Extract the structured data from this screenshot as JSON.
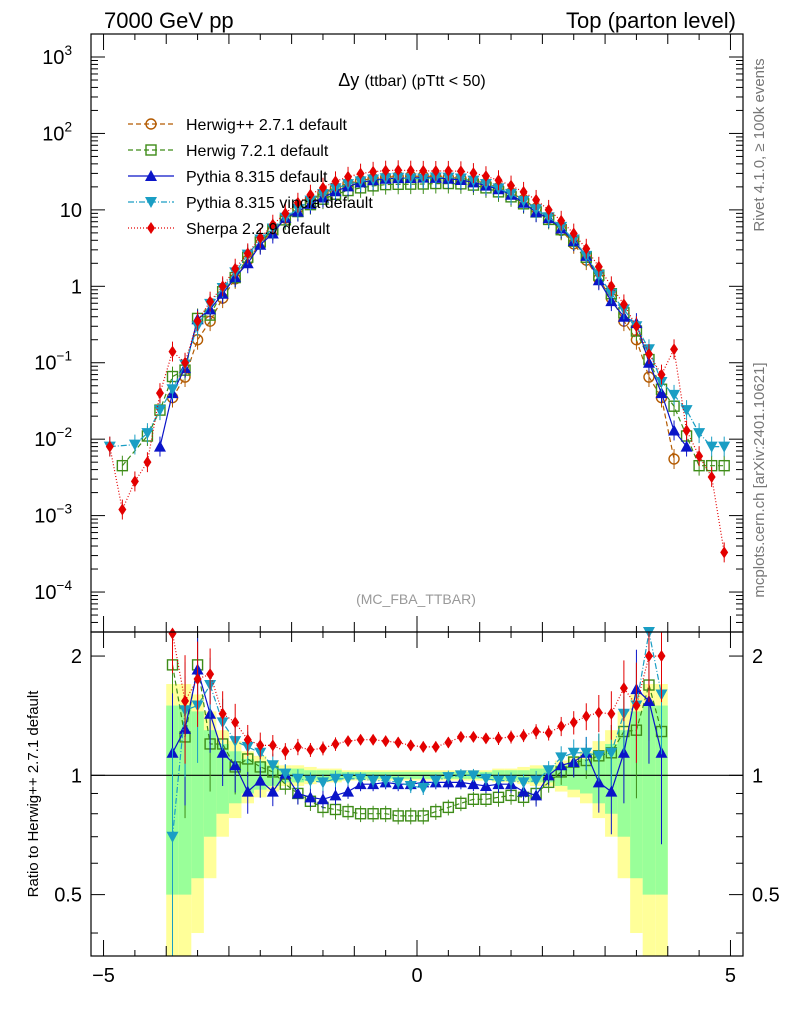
{
  "header": {
    "left": "7000 GeV pp",
    "right": "Top (parton level)"
  },
  "side_labels": {
    "rivet": "Rivet 4.1.0, ≥ 100k events",
    "mcplots": "mcplots.cern.ch [arXiv:2401.10621]"
  },
  "chart_data": {
    "type": "line",
    "title": "Δy",
    "title_suffix": "(ttbar) (pTtt < 50)",
    "watermark": "(MC_FBA_TTBAR)",
    "xlabel": "",
    "ylabel_ratio": "Ratio to Herwig++ 2.7.1 default",
    "xlim": [
      -5.2,
      5.2
    ],
    "ylim_main": [
      3e-05,
      2000
    ],
    "ylim_ratio": [
      0.35,
      2.3
    ],
    "xticks": [
      "−5",
      "0",
      "5"
    ],
    "yticks_main": [
      "10-4",
      "10-3",
      "10-2",
      "10-1",
      "1",
      "10",
      "102",
      "103"
    ],
    "yticks_ratio": [
      "0.5",
      "1",
      "2"
    ],
    "x": [
      -4.9,
      -4.7,
      -4.5,
      -4.3,
      -4.1,
      -3.9,
      -3.7,
      -3.5,
      -3.3,
      -3.1,
      -2.9,
      -2.7,
      -2.5,
      -2.3,
      -2.1,
      -1.9,
      -1.7,
      -1.5,
      -1.3,
      -1.1,
      -0.9,
      -0.7,
      -0.5,
      -0.3,
      -0.1,
      0.1,
      0.3,
      0.5,
      0.7,
      0.9,
      1.1,
      1.3,
      1.5,
      1.7,
      1.9,
      2.1,
      2.3,
      2.5,
      2.7,
      2.9,
      3.1,
      3.3,
      3.5,
      3.7,
      3.9,
      4.1,
      4.3,
      4.5,
      4.7,
      4.9
    ],
    "series": [
      {
        "name": "Herwig++ 2.7.1 default",
        "color": "#b35a00",
        "marker": "circle-open",
        "dash": "5,3",
        "values": [
          null,
          null,
          null,
          null,
          null,
          0.035,
          0.065,
          0.2,
          0.35,
          0.7,
          1.25,
          2.2,
          3.6,
          5.4,
          7.8,
          10.5,
          13.6,
          16.7,
          19.6,
          22.2,
          24.2,
          25.7,
          26.7,
          27.3,
          27.5,
          27.5,
          27.3,
          26.7,
          25.7,
          24.2,
          22.2,
          19.6,
          16.7,
          13.6,
          10.5,
          7.8,
          5.4,
          3.6,
          2.2,
          1.25,
          0.7,
          0.35,
          0.2,
          0.065,
          0.035,
          0.0055,
          null,
          null,
          null,
          null
        ]
      },
      {
        "name": "Herwig 7.2.1 default",
        "color": "#3e8c18",
        "marker": "square-open",
        "dash": "5,3",
        "values": [
          null,
          0.0045,
          null,
          0.011,
          0.024,
          0.066,
          0.08,
          0.38,
          0.42,
          0.85,
          1.3,
          2.4,
          3.8,
          5.5,
          7.4,
          9.5,
          11.7,
          13.8,
          16.0,
          17.9,
          19.4,
          20.6,
          21.4,
          21.6,
          21.7,
          21.8,
          22.1,
          22.1,
          21.9,
          21.1,
          19.4,
          17.2,
          14.8,
          12.0,
          9.4,
          7.5,
          5.5,
          3.9,
          2.4,
          1.4,
          0.8,
          0.45,
          0.26,
          0.11,
          0.045,
          0.027,
          0.011,
          0.0045,
          0.0045,
          0.0045
        ]
      },
      {
        "name": "Pythia 8.315 default",
        "color": "#0a14c8",
        "marker": "triangle-up",
        "dash": "",
        "values": [
          null,
          null,
          null,
          null,
          0.008,
          0.04,
          0.085,
          0.37,
          0.5,
          0.8,
          1.32,
          2.0,
          3.5,
          4.9,
          7.9,
          9.5,
          12.0,
          14.5,
          17.5,
          20.3,
          22.9,
          24.4,
          25.5,
          26.0,
          26.1,
          26.4,
          26.2,
          25.5,
          24.6,
          22.9,
          20.8,
          18.6,
          15.8,
          12.4,
          9.3,
          7.8,
          5.7,
          3.9,
          2.5,
          1.2,
          0.64,
          0.4,
          0.33,
          0.1,
          0.04,
          0.013,
          0.008,
          null,
          null,
          null
        ]
      },
      {
        "name": "Pythia 8.315 vincia default",
        "color": "#1a9ec4",
        "marker": "triangle-down",
        "dash": "6,2,1,2",
        "values": [
          0.008,
          null,
          0.0085,
          0.012,
          0.024,
          0.045,
          0.095,
          0.3,
          0.59,
          0.95,
          1.52,
          2.6,
          4.1,
          5.7,
          7.9,
          10.3,
          13.2,
          16.1,
          19.2,
          21.7,
          23.6,
          25.0,
          25.9,
          26.3,
          25.8,
          25.6,
          26.5,
          26.4,
          25.7,
          24.1,
          21.8,
          19.1,
          16.2,
          13.1,
          10.2,
          8.0,
          6.0,
          4.1,
          2.5,
          1.4,
          0.8,
          0.5,
          0.3,
          0.15,
          0.056,
          0.038,
          0.024,
          0.012,
          0.008,
          0.008
        ]
      },
      {
        "name": "Sherpa 2.2.9 default",
        "color": "#e30000",
        "marker": "diamond",
        "dash": "1,2",
        "values": [
          0.008,
          0.0012,
          0.0028,
          0.005,
          0.04,
          0.14,
          0.1,
          0.35,
          0.63,
          1.0,
          1.7,
          2.7,
          4.3,
          6.4,
          9.0,
          12.4,
          15.8,
          19.5,
          23.6,
          27.1,
          29.8,
          31.5,
          32.6,
          33.0,
          32.6,
          32.4,
          32.3,
          32.4,
          32.0,
          30.3,
          27.6,
          24.4,
          20.8,
          17.2,
          13.5,
          10.0,
          7.2,
          4.9,
          3.1,
          1.8,
          1.0,
          0.58,
          0.3,
          0.13,
          0.07,
          0.15,
          0.013,
          0.006,
          0.0032,
          0.00033
        ]
      }
    ],
    "ratio_series": [
      {
        "name": "Herwig 7.2.1 default",
        "values": [
          null,
          null,
          null,
          null,
          null,
          1.9,
          1.25,
          1.9,
          1.2,
          1.2,
          1.05,
          1.1,
          1.05,
          1.02,
          0.95,
          0.9,
          0.86,
          0.83,
          0.82,
          0.81,
          0.8,
          0.8,
          0.8,
          0.79,
          0.79,
          0.79,
          0.81,
          0.83,
          0.85,
          0.87,
          0.87,
          0.88,
          0.89,
          0.88,
          0.9,
          0.96,
          1.02,
          1.08,
          1.09,
          1.12,
          1.14,
          1.29,
          1.3,
          1.69,
          1.29,
          null,
          null,
          null,
          null,
          null
        ]
      },
      {
        "name": "Pythia 8.315 default",
        "values": [
          null,
          null,
          null,
          null,
          null,
          1.14,
          1.31,
          1.85,
          1.43,
          1.14,
          1.06,
          0.91,
          0.97,
          0.91,
          1.01,
          0.9,
          0.88,
          0.87,
          0.89,
          0.91,
          0.95,
          0.95,
          0.96,
          0.95,
          0.95,
          0.96,
          0.96,
          0.96,
          0.96,
          0.95,
          0.94,
          0.95,
          0.95,
          0.91,
          0.89,
          1.0,
          1.06,
          1.08,
          1.14,
          0.96,
          0.91,
          1.14,
          1.65,
          1.54,
          1.14,
          null,
          null,
          null,
          null,
          null
        ]
      },
      {
        "name": "Pythia 8.315 vincia default",
        "values": [
          null,
          null,
          null,
          null,
          null,
          0.7,
          1.46,
          1.5,
          1.69,
          1.36,
          1.22,
          1.18,
          1.14,
          1.06,
          1.01,
          0.98,
          0.97,
          0.96,
          0.98,
          0.98,
          0.98,
          0.97,
          0.97,
          0.96,
          0.94,
          0.93,
          0.97,
          0.99,
          1.0,
          1.0,
          0.98,
          0.97,
          0.97,
          0.96,
          0.97,
          1.03,
          1.11,
          1.14,
          1.14,
          1.12,
          1.14,
          1.43,
          1.5,
          2.3,
          1.6,
          null,
          null,
          null,
          null,
          null
        ]
      },
      {
        "name": "Sherpa 2.2.9 default",
        "values": [
          null,
          null,
          null,
          null,
          null,
          2.28,
          1.54,
          1.75,
          1.8,
          1.43,
          1.36,
          1.23,
          1.19,
          1.19,
          1.15,
          1.18,
          1.16,
          1.17,
          1.2,
          1.22,
          1.23,
          1.23,
          1.22,
          1.21,
          1.19,
          1.18,
          1.18,
          1.21,
          1.25,
          1.25,
          1.24,
          1.24,
          1.25,
          1.26,
          1.29,
          1.28,
          1.33,
          1.36,
          1.41,
          1.44,
          1.43,
          1.66,
          1.5,
          2.0,
          2.0,
          null,
          null,
          null,
          null,
          null
        ]
      }
    ],
    "ratio_band_green": [
      null,
      null,
      null,
      null,
      null,
      0.5,
      0.5,
      0.45,
      0.3,
      0.2,
      0.15,
      0.1,
      0.08,
      0.06,
      0.04,
      0.04,
      0.03,
      0.03,
      0.03,
      0.02,
      0.02,
      0.02,
      0.02,
      0.02,
      0.02,
      0.02,
      0.02,
      0.02,
      0.02,
      0.02,
      0.02,
      0.03,
      0.03,
      0.03,
      0.04,
      0.04,
      0.06,
      0.08,
      0.1,
      0.15,
      0.2,
      0.3,
      0.45,
      0.5,
      0.5,
      null,
      null,
      null,
      null,
      null
    ],
    "ratio_band_yellow": [
      null,
      null,
      null,
      null,
      null,
      0.7,
      0.7,
      0.6,
      0.45,
      0.3,
      0.22,
      0.15,
      0.12,
      0.09,
      0.06,
      0.06,
      0.05,
      0.04,
      0.04,
      0.03,
      0.03,
      0.03,
      0.03,
      0.03,
      0.03,
      0.03,
      0.03,
      0.03,
      0.03,
      0.03,
      0.03,
      0.04,
      0.04,
      0.05,
      0.06,
      0.06,
      0.09,
      0.12,
      0.15,
      0.22,
      0.3,
      0.45,
      0.6,
      0.7,
      0.7,
      null,
      null,
      null,
      null,
      null
    ],
    "legend_position": "top-left"
  }
}
